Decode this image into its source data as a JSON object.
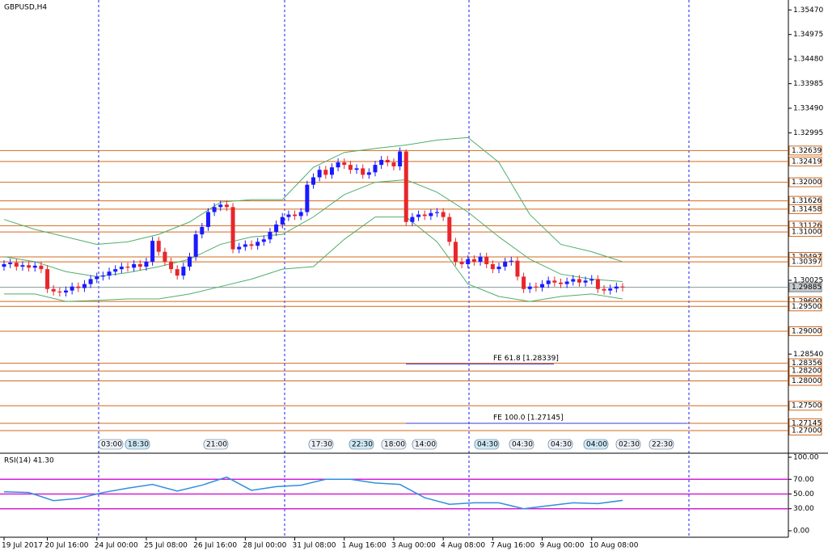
{
  "chart_data": [
    {
      "type": "candlestick",
      "title": "GBPUSD,H4",
      "categories": [
        "19 Jul 2017",
        null,
        null,
        null,
        null,
        null,
        null,
        "20 Jul 16:00",
        null,
        null,
        null,
        null,
        null,
        null,
        null,
        "24 Jul 00:00",
        null,
        null,
        null,
        null,
        null,
        null,
        null,
        "25 Jul 08:00",
        null,
        null,
        null,
        null,
        null,
        null,
        null,
        "26 Jul 16:00",
        null,
        null,
        null,
        null,
        null,
        null,
        null,
        "28 Jul 00:00",
        null,
        null,
        null,
        null,
        null,
        null,
        null,
        "31 Jul 08:00",
        null,
        null,
        null,
        null,
        null,
        null,
        null,
        "1 Aug 16:00",
        null,
        null,
        null,
        null,
        null,
        null,
        null,
        "3 Aug 00:00",
        null,
        null,
        null,
        null,
        null,
        null,
        null,
        "4 Aug 08:00",
        null,
        null,
        null,
        null,
        null,
        null,
        null,
        "7 Aug 16:00",
        null,
        null,
        null,
        null,
        null,
        null,
        null,
        "9 Aug 00:00",
        null,
        null,
        null,
        null,
        null,
        null,
        null,
        "10 Aug 08:00",
        null,
        null,
        null,
        null,
        null
      ],
      "open": [
        1.303,
        1.3035,
        1.3038,
        1.303,
        1.3033,
        1.3028,
        1.3032,
        1.3025,
        1.2985,
        1.298,
        1.2978,
        1.2982,
        1.299,
        1.2987,
        1.2995,
        1.3005,
        1.301,
        1.3012,
        1.302,
        1.3025,
        1.303,
        1.3028,
        1.3035,
        1.303,
        1.304,
        1.3082,
        1.306,
        1.304,
        1.3025,
        1.3012,
        1.303,
        1.305,
        1.3095,
        1.311,
        1.314,
        1.315,
        1.3155,
        1.315,
        1.3065,
        1.307,
        1.3075,
        1.3072,
        1.308,
        1.3085,
        1.31,
        1.3115,
        1.313,
        1.3135,
        1.3132,
        1.314,
        1.3195,
        1.321,
        1.3225,
        1.3215,
        1.323,
        1.324,
        1.3235,
        1.3225,
        1.3228,
        1.3215,
        1.322,
        1.3235,
        1.3245,
        1.324,
        1.3232,
        1.3262,
        1.312,
        1.313,
        1.3135,
        1.3132,
        1.3138,
        1.314,
        1.313,
        1.308,
        1.304,
        1.3035,
        1.3045,
        1.304,
        1.305,
        1.3035,
        1.3025,
        1.303,
        1.304,
        1.3042,
        1.301,
        1.2985,
        1.299,
        1.2988,
        1.2995,
        1.3002,
        1.2998,
        1.2995,
        1.3,
        1.3005,
        1.2998,
        1.3002,
        1.3005,
        1.2985,
        1.2982,
        1.2986,
        1.299
      ],
      "high": [
        1.3043,
        1.3046,
        1.3046,
        1.3041,
        1.3041,
        1.304,
        1.304,
        1.3033,
        1.2993,
        1.2988,
        1.299,
        1.2998,
        1.2998,
        1.3003,
        1.3013,
        1.3018,
        1.302,
        1.3028,
        1.3033,
        1.3038,
        1.3038,
        1.3043,
        1.3043,
        1.3048,
        1.309,
        1.309,
        1.3068,
        1.3048,
        1.3033,
        1.3038,
        1.3058,
        1.3103,
        1.3118,
        1.3148,
        1.3158,
        1.3163,
        1.3163,
        1.3158,
        1.3078,
        1.3083,
        1.3083,
        1.3088,
        1.3093,
        1.3108,
        1.3123,
        1.3138,
        1.3143,
        1.3143,
        1.3148,
        1.3203,
        1.3218,
        1.3233,
        1.3233,
        1.3238,
        1.3248,
        1.3248,
        1.3243,
        1.3236,
        1.3236,
        1.3228,
        1.3243,
        1.3253,
        1.3253,
        1.3248,
        1.327,
        1.3266,
        1.3138,
        1.3143,
        1.3143,
        1.3146,
        1.3148,
        1.3148,
        1.3138,
        1.3088,
        1.3048,
        1.3053,
        1.3053,
        1.3058,
        1.3058,
        1.3043,
        1.3038,
        1.3048,
        1.305,
        1.305,
        1.3018,
        1.2998,
        1.2998,
        1.3003,
        1.301,
        1.301,
        1.3006,
        1.3008,
        1.3013,
        1.3013,
        1.301,
        1.3013,
        1.3013,
        1.2993,
        1.2994,
        1.2998,
        1.2997
      ],
      "low": [
        1.3022,
        1.3027,
        1.3022,
        1.3022,
        1.302,
        1.302,
        1.3017,
        1.2977,
        1.2972,
        1.297,
        1.297,
        1.2974,
        1.2979,
        1.2979,
        1.2987,
        1.2997,
        1.3002,
        1.3004,
        1.3012,
        1.3017,
        1.302,
        1.302,
        1.3022,
        1.3022,
        1.3032,
        1.3052,
        1.3032,
        1.3017,
        1.3004,
        1.3004,
        1.3022,
        1.3042,
        1.3087,
        1.3102,
        1.3132,
        1.3142,
        1.3142,
        1.3057,
        1.3057,
        1.3062,
        1.3064,
        1.3064,
        1.3072,
        1.3077,
        1.3092,
        1.3107,
        1.3122,
        1.3124,
        1.3124,
        1.3132,
        1.3187,
        1.3202,
        1.3207,
        1.3207,
        1.3222,
        1.3227,
        1.3217,
        1.3217,
        1.3207,
        1.3207,
        1.3212,
        1.3227,
        1.3232,
        1.3224,
        1.3224,
        1.3112,
        1.3112,
        1.3122,
        1.3124,
        1.3124,
        1.313,
        1.3122,
        1.3072,
        1.3032,
        1.3027,
        1.3027,
        1.3032,
        1.3032,
        1.3027,
        1.3017,
        1.3017,
        1.3022,
        1.3032,
        1.3002,
        1.2977,
        1.2977,
        1.298,
        1.298,
        1.2987,
        1.299,
        1.2987,
        1.2987,
        1.2992,
        1.299,
        1.299,
        1.2994,
        1.2977,
        1.2974,
        1.2974,
        1.2978,
        1.298
      ],
      "close": [
        1.3035,
        1.3038,
        1.303,
        1.3033,
        1.3028,
        1.3032,
        1.3025,
        1.2985,
        1.298,
        1.2978,
        1.2982,
        1.299,
        1.2987,
        1.2995,
        1.3005,
        1.301,
        1.3012,
        1.302,
        1.3025,
        1.303,
        1.3028,
        1.3035,
        1.303,
        1.304,
        1.3082,
        1.306,
        1.304,
        1.3025,
        1.3012,
        1.303,
        1.305,
        1.3095,
        1.311,
        1.314,
        1.315,
        1.3155,
        1.315,
        1.3065,
        1.307,
        1.3075,
        1.3072,
        1.308,
        1.3085,
        1.31,
        1.3115,
        1.313,
        1.3135,
        1.3132,
        1.314,
        1.3195,
        1.321,
        1.3225,
        1.3215,
        1.323,
        1.324,
        1.3235,
        1.3225,
        1.3228,
        1.3215,
        1.322,
        1.3235,
        1.3245,
        1.324,
        1.3232,
        1.3262,
        1.312,
        1.313,
        1.3135,
        1.3132,
        1.3138,
        1.314,
        1.313,
        1.308,
        1.304,
        1.3035,
        1.3045,
        1.304,
        1.305,
        1.3035,
        1.3025,
        1.303,
        1.304,
        1.3042,
        1.301,
        1.2985,
        1.299,
        1.2988,
        1.2995,
        1.3002,
        1.2998,
        1.2995,
        1.3,
        1.3005,
        1.2998,
        1.3002,
        1.3005,
        1.2985,
        1.2982,
        1.2986,
        1.299,
        1.29885
      ],
      "up_color": "#1a1aff",
      "down_color": "#e8262b",
      "ylim": [
        1.2656,
        1.3567
      ],
      "yticks": [
        {
          "value": 1.3547,
          "label": "1.35470"
        },
        1.34975,
        {
          "value": 1.3448,
          "label": "1.34480"
        },
        1.33985,
        {
          "value": 1.3349,
          "label": "1.33490"
        },
        1.32995,
        1.30025,
        {
          "value": 1.2854,
          "label": "1.28540"
        }
      ],
      "levels": [
        1.32639,
        1.32419,
        {
          "value": 1.32,
          "label": "1.32000"
        },
        1.31626,
        1.31458,
        1.31126,
        {
          "value": 1.31,
          "label": "1.31000"
        },
        1.30497,
        1.30397,
        {
          "value": 1.296,
          "label": "1.29600"
        },
        {
          "value": 1.295,
          "label": "1.29500"
        },
        {
          "value": 1.29,
          "label": "1.29000"
        },
        1.28356,
        {
          "value": 1.282,
          "label": "1.28200"
        },
        {
          "value": 1.28,
          "label": "1.28000"
        },
        {
          "value": 1.275,
          "label": "1.27500"
        },
        1.27145,
        {
          "value": 1.27,
          "label": "1.27000"
        }
      ],
      "level_color": "#d2691e",
      "current": 1.29885,
      "bands": {
        "color": "#4caf6a",
        "x": [
          0,
          5,
          10,
          15,
          20,
          25,
          30,
          35,
          40,
          45,
          50,
          55,
          60,
          65,
          70,
          75,
          80,
          85,
          90,
          95,
          100
        ],
        "upper": [
          1.3125,
          1.3105,
          1.309,
          1.3075,
          1.308,
          1.3095,
          1.312,
          1.316,
          1.3165,
          1.3165,
          1.323,
          1.326,
          1.3268,
          1.3275,
          1.3285,
          1.329,
          1.324,
          1.3135,
          1.3075,
          1.306,
          1.304
        ],
        "middle": [
          1.305,
          1.304,
          1.302,
          1.301,
          1.3018,
          1.303,
          1.3045,
          1.3075,
          1.309,
          1.3095,
          1.313,
          1.3175,
          1.32,
          1.3205,
          1.318,
          1.314,
          1.309,
          1.3045,
          1.3015,
          1.3005,
          1.3
        ],
        "lower": [
          1.2975,
          1.2975,
          1.296,
          1.2962,
          1.2965,
          1.2965,
          1.2975,
          1.299,
          1.3005,
          1.3025,
          1.303,
          1.3085,
          1.313,
          1.313,
          1.308,
          1.2995,
          1.297,
          1.296,
          1.297,
          1.2975,
          1.2965
        ]
      },
      "annotations": [
        {
          "text": "FE 61.8 [1.28339]",
          "value": 1.28339
        },
        {
          "text": "FE 100.0 [1.27145]",
          "value": 1.27145
        }
      ],
      "events": [
        "03:00",
        "18:30",
        "21:00",
        "17:30",
        "22:30",
        "18:00",
        "14:00",
        "04:30",
        "04:30",
        "04:30",
        "04:00",
        "02:30",
        "22:30"
      ]
    },
    {
      "type": "line",
      "title": "RSI(14) 41.30",
      "color": "#2f8fdf",
      "x": [
        0,
        4,
        8,
        12,
        16,
        20,
        24,
        28,
        32,
        36,
        40,
        44,
        48,
        52,
        56,
        60,
        64,
        68,
        72,
        76,
        80,
        84,
        88,
        92,
        96,
        100
      ],
      "values": [
        53,
        52,
        41,
        44,
        52,
        58,
        63,
        54,
        62,
        73,
        55,
        60,
        62,
        70,
        70,
        65,
        63,
        45,
        36,
        38,
        38,
        30,
        34,
        38,
        37,
        41.3
      ],
      "ylim": [
        -8.8,
        104.4
      ],
      "yticks": [
        {
          "value": 100,
          "label": "100.00"
        },
        {
          "value": 70,
          "label": "70.00"
        },
        {
          "value": 50,
          "label": "50.00"
        },
        {
          "value": 30,
          "label": "30.00"
        },
        {
          "value": 0,
          "label": "0.00"
        }
      ],
      "hlines": [
        70,
        50,
        30
      ],
      "hline_color": "#d61fd6"
    }
  ]
}
